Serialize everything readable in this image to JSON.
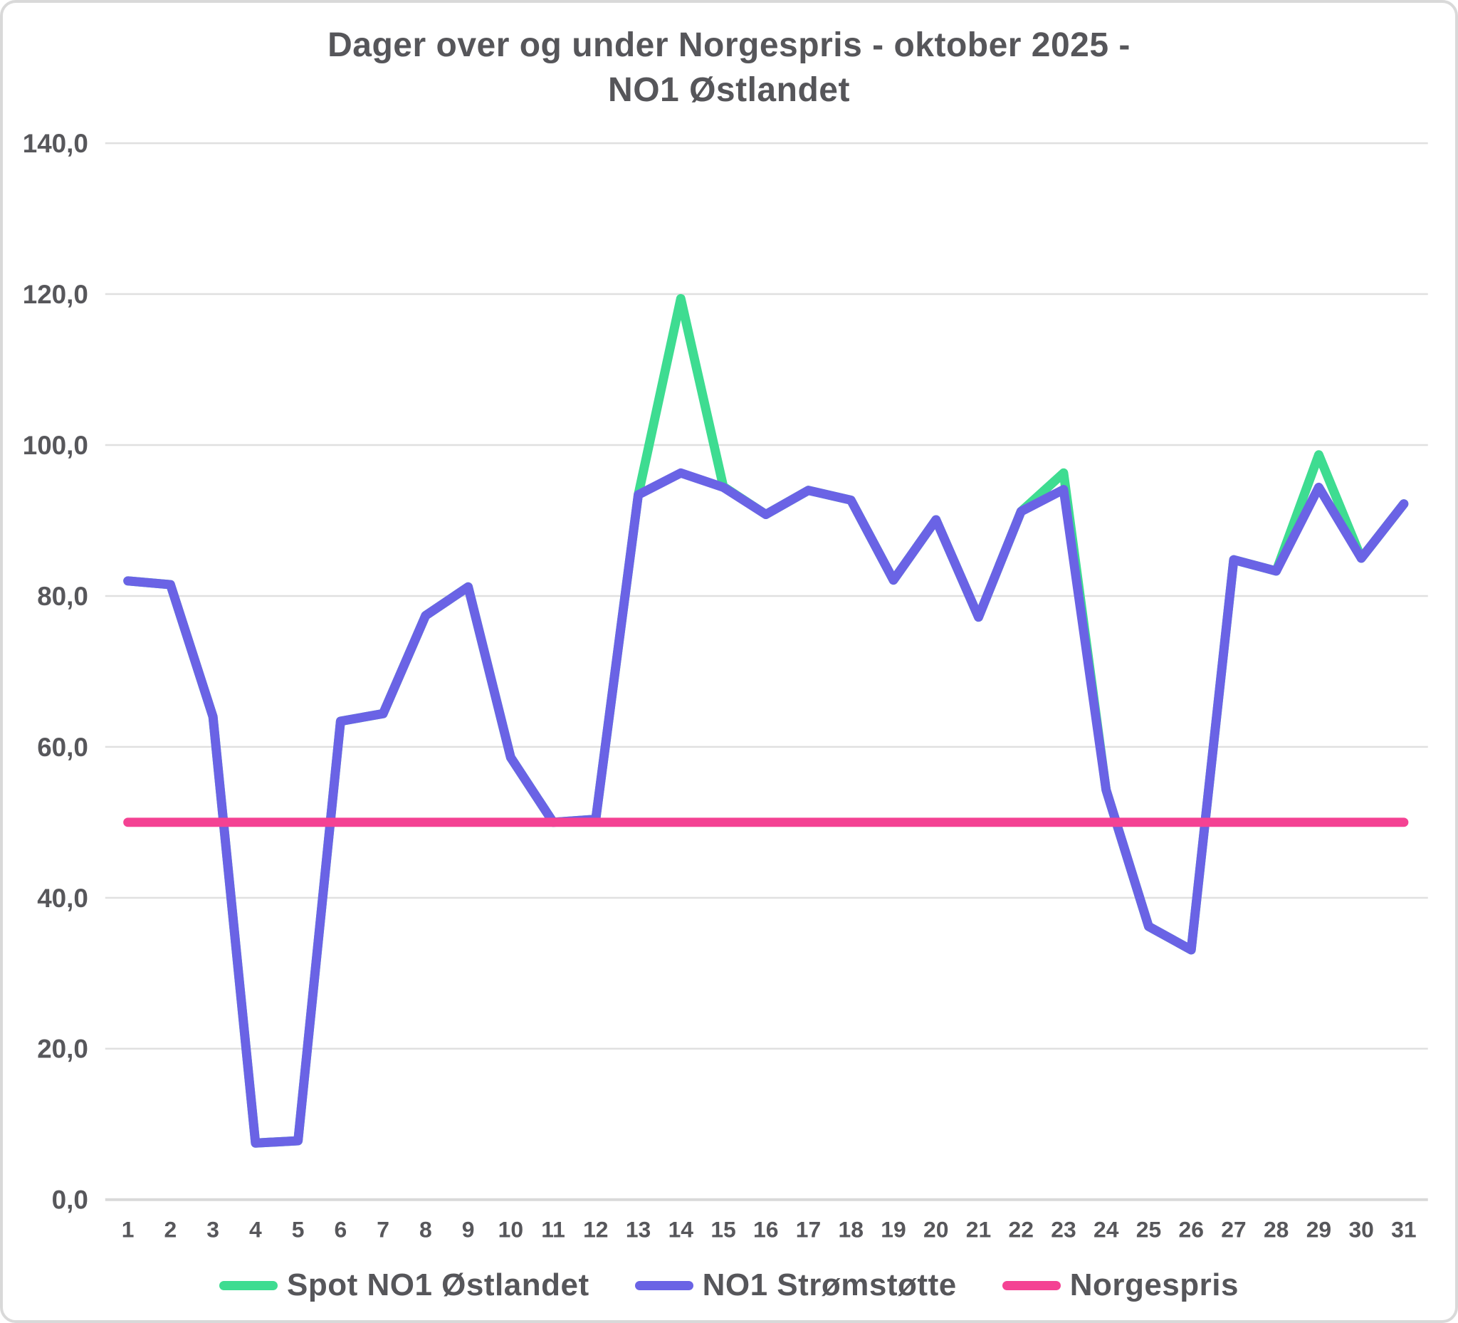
{
  "card": {
    "background": "#ffffff",
    "border_color": "#d9d9d9"
  },
  "title": {
    "line1": "Dager over og under Norgespris - oktober 2025 -",
    "line2": "NO1 Østlandet",
    "color": "#56565a"
  },
  "chart_data": {
    "type": "line",
    "title": "Dager over og under Norgespris - oktober 2025 - NO1 Østlandet",
    "xlabel": "",
    "ylabel": "",
    "categories": [
      1,
      2,
      3,
      4,
      5,
      6,
      7,
      8,
      9,
      10,
      11,
      12,
      13,
      14,
      15,
      16,
      17,
      18,
      19,
      20,
      21,
      22,
      23,
      24,
      25,
      26,
      27,
      28,
      29,
      30,
      31
    ],
    "series": [
      {
        "name": "Spot NO1 Østlandet",
        "color": "#3edc91",
        "values": [
          82.0,
          81.5,
          64.0,
          7.5,
          7.8,
          63.4,
          64.4,
          77.4,
          81.2,
          58.6,
          50.0,
          50.4,
          93.4,
          119.4,
          94.5,
          90.8,
          94.0,
          92.7,
          82.1,
          90.1,
          77.2,
          91.2,
          96.3,
          54.3,
          36.2,
          33.1,
          84.8,
          83.3,
          98.7,
          85.0,
          92.2
        ]
      },
      {
        "name": "NO1 Strømstøtte",
        "color": "#6a63e5",
        "values": [
          82.0,
          81.5,
          64.0,
          7.5,
          7.8,
          63.4,
          64.4,
          77.4,
          81.2,
          58.6,
          50.0,
          50.4,
          93.4,
          96.3,
          94.4,
          90.8,
          94.0,
          92.7,
          82.1,
          90.1,
          77.2,
          91.2,
          94.1,
          54.3,
          36.2,
          33.1,
          84.8,
          83.3,
          94.4,
          85.0,
          92.2
        ]
      },
      {
        "name": "Norgespris",
        "color": "#f44293",
        "values": [
          50,
          50,
          50,
          50,
          50,
          50,
          50,
          50,
          50,
          50,
          50,
          50,
          50,
          50,
          50,
          50,
          50,
          50,
          50,
          50,
          50,
          50,
          50,
          50,
          50,
          50,
          50,
          50,
          50,
          50,
          50
        ]
      }
    ],
    "ylim": [
      0,
      140
    ],
    "y_ticks": [
      0,
      20,
      40,
      60,
      80,
      100,
      120,
      140
    ],
    "y_tick_labels": [
      "0,0",
      "20,0",
      "40,0",
      "60,0",
      "80,0",
      "100,0",
      "120,0",
      "140,0"
    ],
    "grid": {
      "horizontal": true,
      "vertical": false,
      "color": "#e0e0e0",
      "zero_line_color": "#d9d9d9"
    },
    "axis_text_color": "#57575b",
    "legend_position": "bottom"
  }
}
